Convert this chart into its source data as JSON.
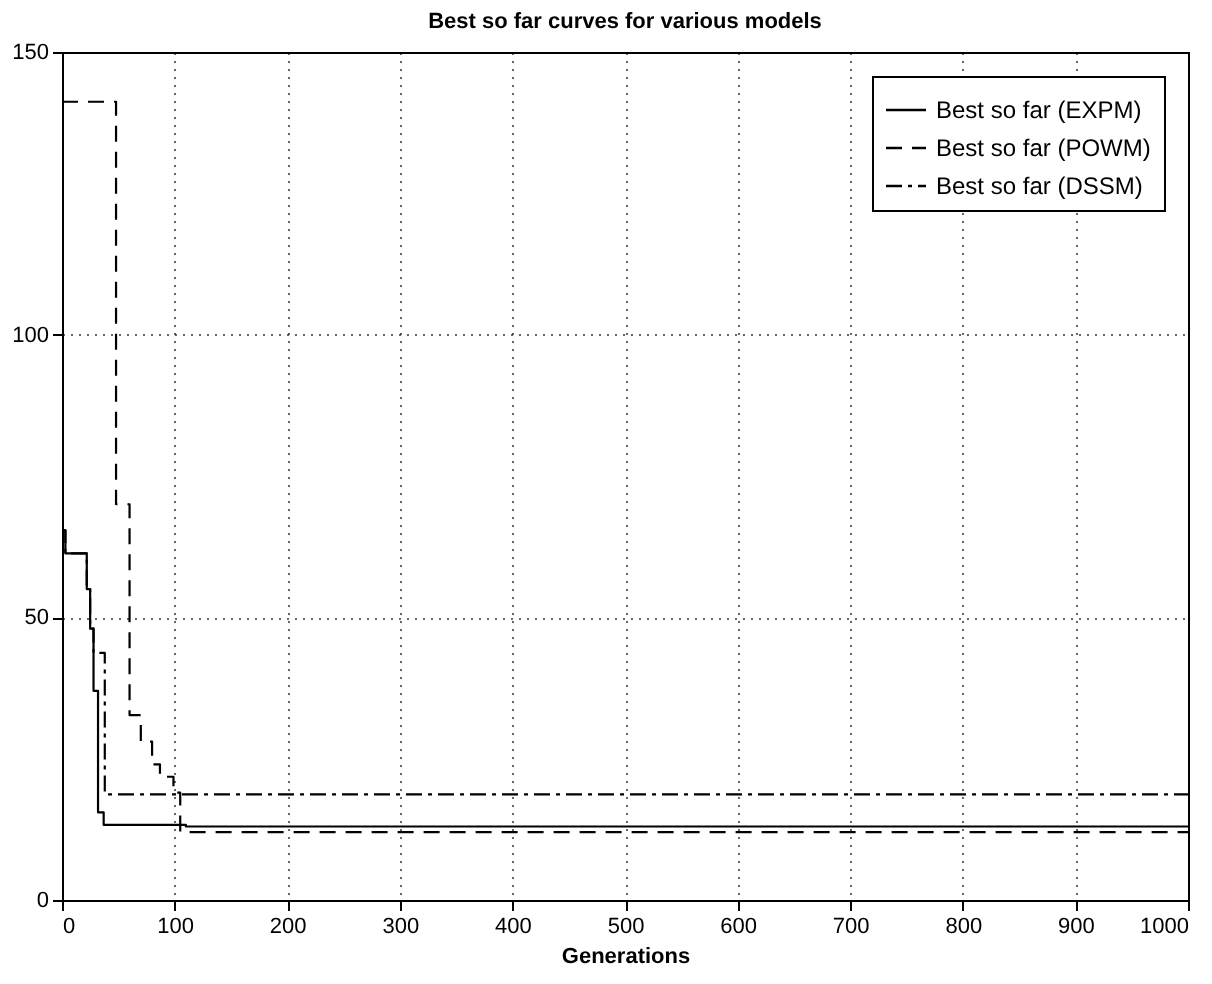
{
  "chart_data": {
    "type": "step",
    "title": "Best so far curves for various models",
    "xlabel": "Generations",
    "xlim": [
      0,
      1000
    ],
    "xticks": [
      0,
      100,
      200,
      300,
      400,
      500,
      600,
      700,
      800,
      900,
      1000
    ],
    "ylim": [
      0,
      150
    ],
    "yticks": [
      0,
      50,
      100,
      150
    ],
    "grid": true,
    "legend": "top right",
    "series": [
      {
        "name": "Best so far (EXPM)",
        "color": "#000000",
        "line_style": "solid",
        "x": [
          0,
          3,
          18,
          22,
          25,
          28,
          32,
          37,
          105,
          110,
          1000
        ],
        "values": [
          65.4,
          61.3,
          61.3,
          55,
          48,
          37,
          15.5,
          13.3,
          13.3,
          13.0,
          13.0
        ]
      },
      {
        "name": "Best so far (POWM)",
        "color": "#000000",
        "line_style": "dashed",
        "x": [
          0,
          48,
          60,
          70,
          80,
          87,
          99,
          105,
          1000
        ],
        "values": [
          141.2,
          70,
          32.7,
          28,
          24,
          21.8,
          19,
          12,
          12
        ]
      },
      {
        "name": "Best so far (DSSM)",
        "color": "#000000",
        "line_style": "dashdot",
        "x": [
          0,
          3,
          18,
          22,
          25,
          28,
          38,
          1000
        ],
        "values": [
          65.4,
          61.3,
          61.3,
          55,
          48,
          43.7,
          18.7,
          18.7
        ]
      }
    ]
  }
}
